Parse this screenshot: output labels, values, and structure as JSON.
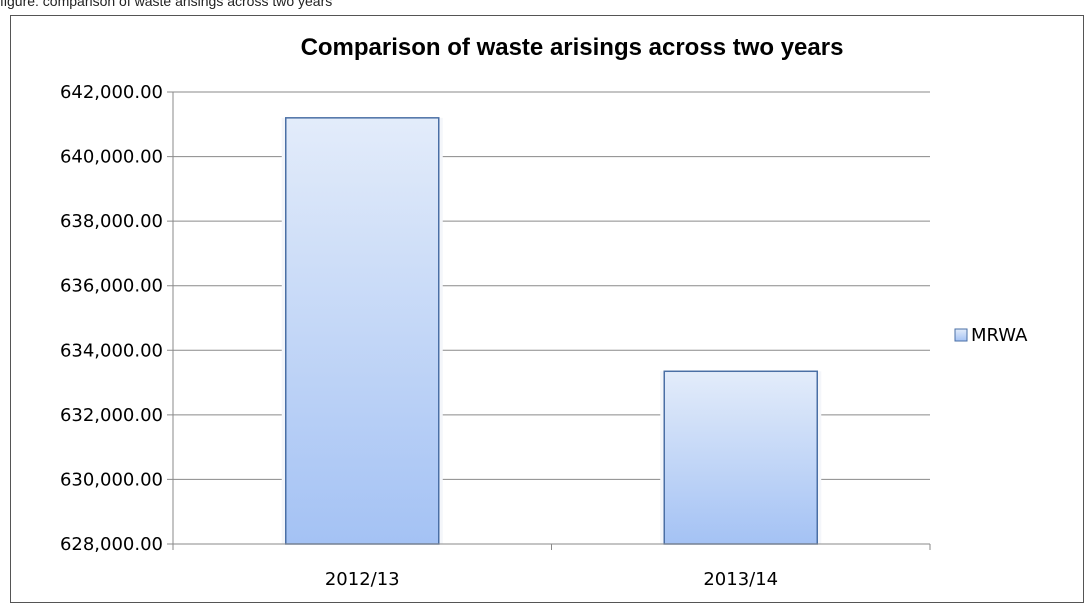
{
  "caption": "figure: comparison of waste arisings across two years",
  "chart_data": {
    "type": "bar",
    "title": "Comparison of waste arisings across two years",
    "categories": [
      "2012/13",
      "2013/14"
    ],
    "series": [
      {
        "name": "MRWA",
        "values": [
          641200,
          633350
        ]
      }
    ],
    "ylim": [
      628000,
      642000
    ],
    "yticks": [
      628000,
      630000,
      632000,
      634000,
      636000,
      638000,
      640000,
      642000
    ],
    "ytick_labels": [
      "628,000.00",
      "630,000.00",
      "632,000.00",
      "634,000.00",
      "636,000.00",
      "638,000.00",
      "640,000.00",
      "642,000.00"
    ],
    "grid": true,
    "legend_position": "right",
    "colors": {
      "bar_top": "#e3ecfa",
      "bar_bottom": "#a4c2f4",
      "bar_border": "#4a6fa5"
    }
  }
}
